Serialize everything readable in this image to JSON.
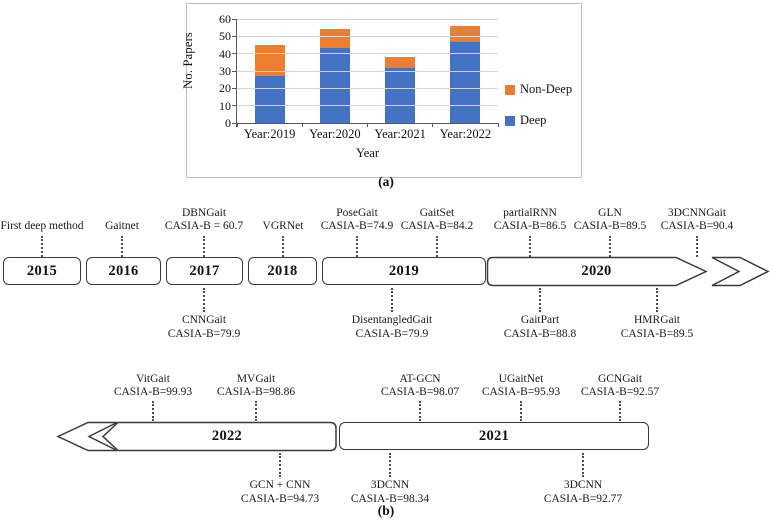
{
  "figure": {
    "caption_a": "(a)",
    "caption_b": "(b)"
  },
  "chart_data": {
    "type": "bar",
    "stacked": true,
    "title": "",
    "categories": [
      "Year:2019",
      "Year:2020",
      "Year:2021",
      "Year:2022"
    ],
    "series": [
      {
        "name": "Deep",
        "color": "#4472C4",
        "values": [
          27,
          43,
          32,
          47
        ]
      },
      {
        "name": "Non-Deep",
        "color": "#ED7D31",
        "values": [
          18,
          11,
          6,
          9
        ]
      }
    ],
    "totals": [
      45,
      54,
      38,
      56
    ],
    "xlabel": "Year",
    "ylabel": "No. Papers",
    "ylim": [
      0,
      60
    ],
    "yticks": [
      0,
      10,
      20,
      30,
      40,
      50,
      60
    ],
    "grid": true,
    "legend_position": "right",
    "legend_items": [
      {
        "label": "Non-Deep",
        "color": "#ED7D31"
      },
      {
        "label": "Deep",
        "color": "#4472C4"
      }
    ]
  },
  "timeline_row1": {
    "years": {
      "y2015": "2015",
      "y2016": "2016",
      "y2017": "2017",
      "y2018": "2018",
      "y2019": "2019",
      "y2020": "2020"
    },
    "above": [
      {
        "name": "First deep method",
        "score": ""
      },
      {
        "name": "Gaitnet",
        "score": ""
      },
      {
        "name": "DBNGait",
        "score": "CASIA-B = 60.7"
      },
      {
        "name": "VGRNet",
        "score": ""
      },
      {
        "name": "PoseGait",
        "score": "CASIA-B=74.9"
      },
      {
        "name": "GaitSet",
        "score": "CASIA-B=84.2"
      },
      {
        "name": "partialRNN",
        "score": "CASIA-B=86.5"
      },
      {
        "name": "GLN",
        "score": "CASIA-B=89.5"
      },
      {
        "name": "3DCNNGait",
        "score": "CASIA-B=90.4"
      }
    ],
    "below": [
      {
        "name": "CNNGait",
        "score": "CASIA-B=79.9"
      },
      {
        "name": "DisentangledGait",
        "score": "CASIA-B=79.9"
      },
      {
        "name": "GaitPart",
        "score": "CASIA-B=88.8"
      },
      {
        "name": "HMRGait",
        "score": "CASIA-B=89.5"
      }
    ]
  },
  "timeline_row2": {
    "years": {
      "y2022": "2022",
      "y2021": "2021"
    },
    "above": [
      {
        "name": "VitGait",
        "score": "CASIA-B=99.93"
      },
      {
        "name": "MVGait",
        "score": "CASIA-B=98.86"
      },
      {
        "name": "AT-GCN",
        "score": "CASIA-B=98.07"
      },
      {
        "name": "UGaitNet",
        "score": "CASIA-B=95.93"
      },
      {
        "name": "GCNGait",
        "score": "CASIA-B=92.57"
      }
    ],
    "below": [
      {
        "name": "GCN + CNN",
        "score": "CASIA-B=94.73"
      },
      {
        "name": "3DCNN",
        "score": "CASIA-B=98.34"
      },
      {
        "name": "3DCNN",
        "score": "CASIA-B=92.77"
      }
    ]
  }
}
